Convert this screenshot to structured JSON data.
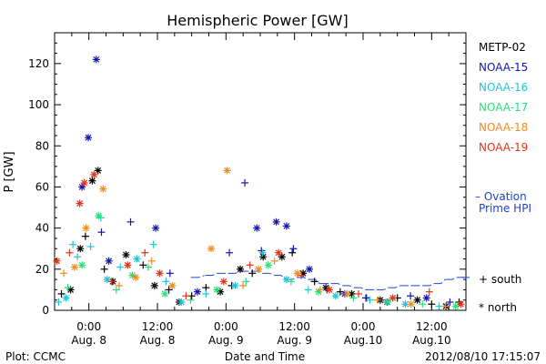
{
  "chart_data": {
    "type": "scatter",
    "title": "Hemispheric Power [GW]",
    "xlabel": "Date and Time",
    "ylabel": "P [GW]",
    "xlim": [
      -6,
      66
    ],
    "ylim": [
      0,
      135
    ],
    "y_ticks": [
      0,
      20,
      40,
      60,
      80,
      100,
      120
    ],
    "x_ticks": [
      {
        "h": 0,
        "time": "0:00",
        "date": "Aug. 8"
      },
      {
        "h": 12,
        "time": "12:00",
        "date": "Aug. 8"
      },
      {
        "h": 24,
        "time": "0:00",
        "date": "Aug. 9"
      },
      {
        "h": 36,
        "time": "12:00",
        "date": "Aug. 9"
      },
      {
        "h": 48,
        "time": "0:00",
        "date": "Aug.10"
      },
      {
        "h": 60,
        "time": "12:00",
        "date": "Aug.10"
      }
    ],
    "footer_left": "Plot: CCMC",
    "footer_right": "2012/08/10 17:15:07",
    "legend": {
      "satellites": [
        {
          "name": "METP-02",
          "color": "#000000"
        },
        {
          "name": "NOAA-15",
          "color": "#1414b4"
        },
        {
          "name": "NOAA-16",
          "color": "#22c4d8"
        },
        {
          "name": "NOAA-17",
          "color": "#28e07a"
        },
        {
          "name": "NOAA-18",
          "color": "#f08c1c"
        },
        {
          "name": "NOAA-19",
          "color": "#e23414"
        }
      ],
      "ovation": {
        "line1": "– Ovation",
        "line2": "Prime HPI",
        "color": "#1a44d0"
      },
      "south": "+ south",
      "north": "* north"
    },
    "ovation_hpi": [
      [
        18.5,
        16
      ],
      [
        21,
        17
      ],
      [
        23,
        18
      ],
      [
        25,
        18
      ],
      [
        27,
        19
      ],
      [
        29,
        19
      ],
      [
        31,
        18
      ],
      [
        33,
        17
      ],
      [
        35,
        15
      ],
      [
        37,
        16
      ],
      [
        39,
        15
      ],
      [
        41,
        13
      ],
      [
        43,
        13
      ],
      [
        45,
        12
      ],
      [
        47,
        11
      ],
      [
        49,
        10
      ],
      [
        51,
        10
      ],
      [
        53,
        11
      ],
      [
        55,
        12
      ],
      [
        57,
        12
      ],
      [
        59,
        12
      ],
      [
        61,
        13
      ],
      [
        63,
        15
      ],
      [
        65,
        16
      ],
      [
        66,
        16
      ]
    ],
    "series": [
      {
        "name": "METP-02",
        "color": "#000000",
        "points": [
          [
            -4.8,
            8,
            "s"
          ],
          [
            -3.2,
            10,
            "n"
          ],
          [
            -1.5,
            30,
            "n"
          ],
          [
            -0.6,
            36,
            "s"
          ],
          [
            0.6,
            63,
            "n"
          ],
          [
            1.6,
            68,
            "n"
          ],
          [
            2.7,
            20,
            "s"
          ],
          [
            4.2,
            14,
            "n"
          ],
          [
            6.5,
            27,
            "n"
          ],
          [
            9.5,
            22,
            "s"
          ],
          [
            11.5,
            12,
            "n"
          ],
          [
            14,
            10,
            "s"
          ],
          [
            15.8,
            4,
            "n"
          ],
          [
            18,
            7,
            "s"
          ],
          [
            20.5,
            11,
            "s"
          ],
          [
            23,
            9,
            "n"
          ],
          [
            25,
            12,
            "s"
          ],
          [
            26.5,
            20,
            "n"
          ],
          [
            28.6,
            18,
            "s"
          ],
          [
            30.5,
            26,
            "n"
          ],
          [
            33.8,
            26,
            "n"
          ],
          [
            35.6,
            28,
            "s"
          ],
          [
            37.5,
            18,
            "n"
          ],
          [
            39.5,
            14,
            "s"
          ],
          [
            41.5,
            11,
            "n"
          ],
          [
            44,
            9,
            "s"
          ],
          [
            46,
            8,
            "n"
          ],
          [
            48.5,
            6,
            "s"
          ],
          [
            51,
            5,
            "n"
          ],
          [
            54,
            6,
            "s"
          ],
          [
            57.5,
            5,
            "n"
          ],
          [
            60,
            3,
            "s"
          ],
          [
            62.5,
            2,
            "n"
          ],
          [
            64.8,
            4,
            "s"
          ]
        ]
      },
      {
        "name": "NOAA-15",
        "color": "#1414b4",
        "points": [
          [
            -1.2,
            60,
            "n"
          ],
          [
            -0.1,
            84,
            "n"
          ],
          [
            1.3,
            122,
            "n"
          ],
          [
            2.2,
            38,
            "s"
          ],
          [
            3.5,
            24,
            "n"
          ],
          [
            7.3,
            43,
            "s"
          ],
          [
            11.7,
            40,
            "n"
          ],
          [
            14.2,
            18,
            "s"
          ],
          [
            19,
            9,
            "n"
          ],
          [
            24.6,
            28,
            "s"
          ],
          [
            27.3,
            62,
            "s"
          ],
          [
            29.4,
            40,
            "n"
          ],
          [
            30.2,
            29,
            "s"
          ],
          [
            32.8,
            43,
            "n"
          ],
          [
            34.6,
            41,
            "n"
          ],
          [
            35.8,
            30,
            "s"
          ],
          [
            38.6,
            20,
            "n"
          ],
          [
            41.7,
            10,
            "s"
          ],
          [
            44.8,
            8,
            "n"
          ],
          [
            48.6,
            6,
            "s"
          ],
          [
            52.2,
            4,
            "n"
          ],
          [
            56.3,
            7,
            "s"
          ],
          [
            59.1,
            6,
            "n"
          ],
          [
            63.2,
            4,
            "s"
          ]
        ]
      },
      {
        "name": "NOAA-16",
        "color": "#22c4d8",
        "points": [
          [
            -5.3,
            4,
            "s"
          ],
          [
            -4,
            6,
            "n"
          ],
          [
            -2.8,
            32,
            "s"
          ],
          [
            -2,
            26,
            "s"
          ],
          [
            0.3,
            31,
            "s"
          ],
          [
            2.1,
            45,
            "s"
          ],
          [
            3.2,
            15,
            "n"
          ],
          [
            5.5,
            21,
            "s"
          ],
          [
            8.4,
            25,
            "n"
          ],
          [
            11.3,
            32,
            "s"
          ],
          [
            13.5,
            14,
            "s"
          ],
          [
            16.2,
            4,
            "n"
          ],
          [
            20.5,
            8,
            "s"
          ],
          [
            25.6,
            12,
            "n"
          ],
          [
            30.4,
            28,
            "s"
          ],
          [
            34.6,
            15,
            "n"
          ],
          [
            38.4,
            10,
            "s"
          ],
          [
            43.2,
            7,
            "n"
          ],
          [
            49.2,
            5,
            "s"
          ],
          [
            55.4,
            3,
            "n"
          ],
          [
            61.3,
            2,
            "s"
          ]
        ]
      },
      {
        "name": "NOAA-17",
        "color": "#28e07a",
        "points": [
          [
            -3.7,
            11,
            "s"
          ],
          [
            -1.2,
            22,
            "n"
          ],
          [
            1.7,
            46,
            "n"
          ],
          [
            4.8,
            10,
            "s"
          ],
          [
            7.6,
            17,
            "n"
          ],
          [
            10.4,
            21,
            "s"
          ],
          [
            13.3,
            8,
            "n"
          ],
          [
            17.8,
            5,
            "s"
          ],
          [
            22.4,
            10,
            "n"
          ],
          [
            27.5,
            14,
            "s"
          ],
          [
            31.4,
            22,
            "n"
          ],
          [
            35.4,
            14,
            "s"
          ],
          [
            40.2,
            9,
            "n"
          ],
          [
            46.3,
            6,
            "s"
          ],
          [
            52.3,
            4,
            "n"
          ],
          [
            58.4,
            3,
            "s"
          ],
          [
            64.2,
            2,
            "n"
          ]
        ]
      },
      {
        "name": "NOAA-18",
        "color": "#f08c1c",
        "points": [
          [
            -4.4,
            18,
            "s"
          ],
          [
            -2.5,
            21,
            "n"
          ],
          [
            -0.5,
            40,
            "n"
          ],
          [
            2.5,
            59,
            "n"
          ],
          [
            5.3,
            12,
            "s"
          ],
          [
            8.2,
            16,
            "n"
          ],
          [
            11,
            24,
            "s"
          ],
          [
            14.6,
            12,
            "n"
          ],
          [
            21.4,
            30,
            "n"
          ],
          [
            24.2,
            68,
            "n"
          ],
          [
            27,
            12,
            "s"
          ],
          [
            29.7,
            20,
            "n"
          ],
          [
            32.5,
            24,
            "s"
          ],
          [
            36.5,
            18,
            "n"
          ],
          [
            40.5,
            10,
            "s"
          ],
          [
            45.2,
            8,
            "n"
          ],
          [
            50.5,
            5,
            "s"
          ],
          [
            56.4,
            3,
            "n"
          ],
          [
            62.4,
            2,
            "s"
          ]
        ]
      },
      {
        "name": "NOAA-19",
        "color": "#e23414",
        "points": [
          [
            -5.6,
            24,
            "n"
          ],
          [
            -3.4,
            28,
            "s"
          ],
          [
            -1.6,
            52,
            "n"
          ],
          [
            -0.8,
            62,
            "n"
          ],
          [
            0.9,
            66,
            "n"
          ],
          [
            4,
            14,
            "s"
          ],
          [
            6.8,
            22,
            "n"
          ],
          [
            9.8,
            28,
            "s"
          ],
          [
            12.4,
            18,
            "n"
          ],
          [
            17,
            7,
            "s"
          ],
          [
            23.6,
            14,
            "n"
          ],
          [
            28.2,
            22,
            "s"
          ],
          [
            33.2,
            28,
            "n"
          ],
          [
            37.2,
            17,
            "s"
          ],
          [
            42.1,
            10,
            "n"
          ],
          [
            47.2,
            8,
            "s"
          ],
          [
            53.2,
            6,
            "n"
          ],
          [
            59.6,
            9,
            "s"
          ],
          [
            65.1,
            3,
            "n"
          ]
        ]
      }
    ]
  }
}
